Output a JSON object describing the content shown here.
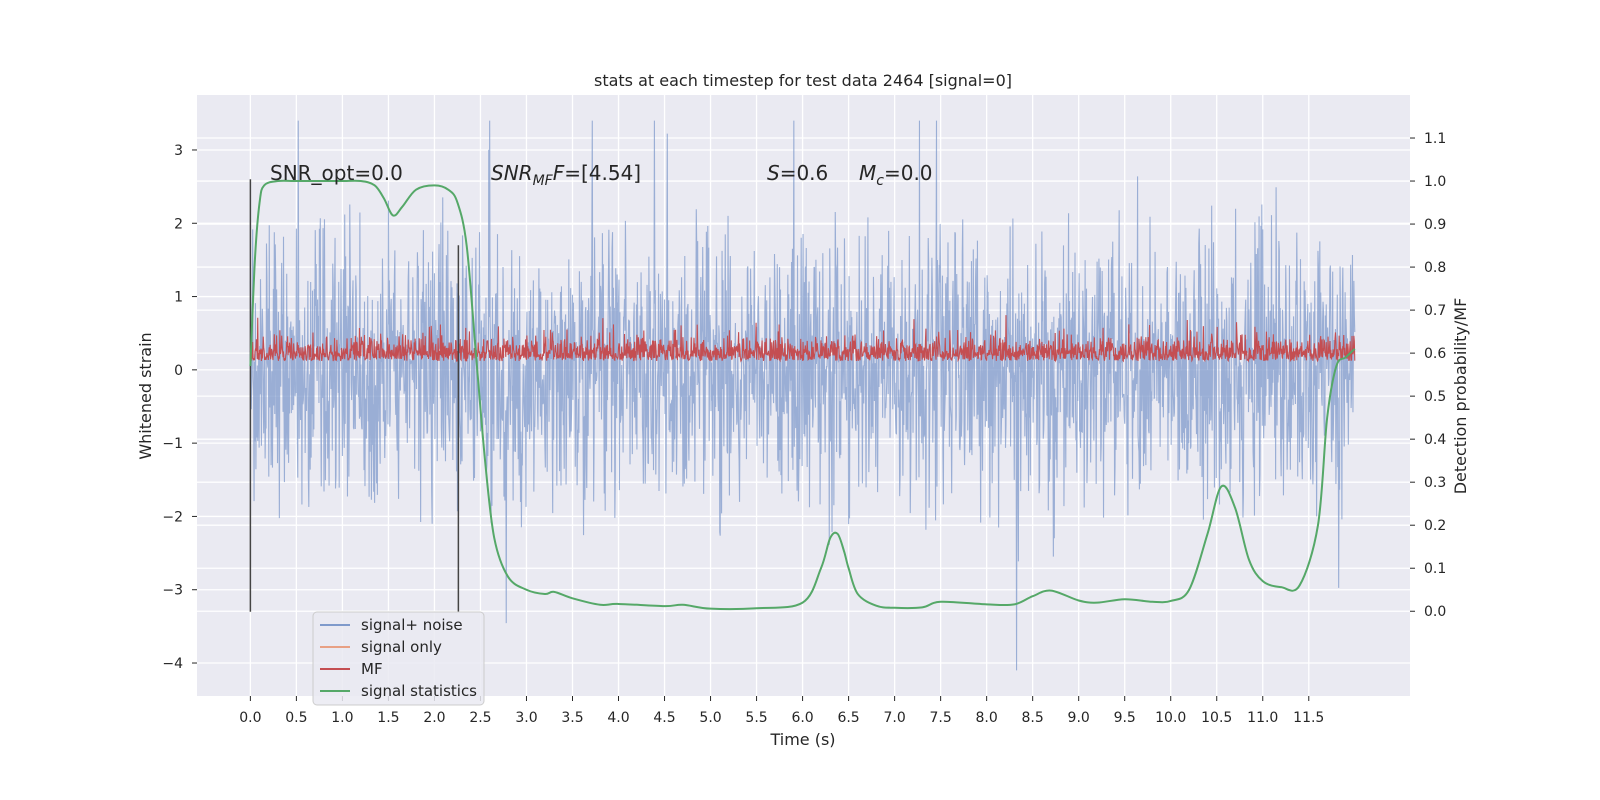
{
  "chart_data": {
    "type": "line",
    "title": "stats at each timestep for test data 2464 [signal=0]",
    "xlabel": "Time (s)",
    "ylabel": "Whitened strain",
    "y2label": "Detection probability/MF",
    "xlim": [
      -0.58,
      12.6
    ],
    "ylim": [
      -4.45,
      3.75
    ],
    "y2lim": [
      -0.197,
      1.2
    ],
    "xticks": [
      "0.0",
      "0.5",
      "1.0",
      "1.5",
      "2.0",
      "2.5",
      "3.0",
      "3.5",
      "4.0",
      "4.5",
      "5.0",
      "5.5",
      "6.0",
      "6.5",
      "7.0",
      "7.5",
      "8.0",
      "8.5",
      "9.0",
      "9.5",
      "10.0",
      "10.5",
      "11.0",
      "11.5"
    ],
    "yticks": [
      3,
      2,
      1,
      0,
      -1,
      -2,
      -3,
      -4
    ],
    "ytick_labels": [
      "3",
      "2",
      "1",
      "0",
      "−1",
      "−2",
      "−3",
      "−4"
    ],
    "y2ticks": [
      "1.1",
      "1.0",
      "0.9",
      "0.8",
      "0.7",
      "0.6",
      "0.5",
      "0.4",
      "0.3",
      "0.2",
      "0.1",
      "0.0"
    ],
    "grid": true,
    "legend_position": "lower-left",
    "annotations": {
      "snr_opt": "SNR_opt=0.0",
      "snr_mf_name": "SNR",
      "snr_mf_sub": "MF",
      "snr_mf_rest": "=[4.54]",
      "s_name": "S",
      "s_rest": "=0.6",
      "mc_name": "M",
      "mc_sub": "c",
      "mc_rest": "=0.0"
    },
    "series": [
      {
        "name": "signal+ noise",
        "color": "#7f9acb",
        "axis": "left",
        "envelope": {
          "t_start": 0.0,
          "t_end": 12.0,
          "typical_abs": 1.5,
          "max": 3.4,
          "min": -4.1
        }
      },
      {
        "name": "signal only",
        "color": "#e8a084",
        "axis": "left",
        "values": []
      },
      {
        "name": "MF",
        "color": "#c44e52",
        "axis": "left",
        "envelope": {
          "t_start": 0.0,
          "t_end": 12.0,
          "baseline": 0.0,
          "typical_max": 0.6,
          "max": 1.0
        }
      },
      {
        "name": "signal statistics",
        "color": "#55a868",
        "axis": "right",
        "x": [
          0.0,
          0.05,
          0.1,
          0.15,
          0.3,
          0.5,
          0.8,
          1.0,
          1.2,
          1.35,
          1.45,
          1.55,
          1.65,
          1.8,
          2.0,
          2.15,
          2.25,
          2.35,
          2.45,
          2.55,
          2.65,
          2.8,
          3.0,
          3.2,
          3.3,
          3.5,
          3.8,
          4.0,
          4.5,
          4.7,
          5.0,
          5.5,
          6.0,
          6.2,
          6.3,
          6.38,
          6.45,
          6.5,
          6.6,
          6.8,
          7.0,
          7.3,
          7.5,
          8.0,
          8.3,
          8.5,
          8.7,
          9.0,
          9.2,
          9.5,
          9.8,
          10.0,
          10.2,
          10.4,
          10.55,
          10.7,
          10.85,
          11.0,
          11.2,
          11.4,
          11.6,
          11.7,
          11.8,
          11.9,
          12.0
        ],
        "y": [
          0.57,
          0.82,
          0.95,
          0.99,
          1.0,
          1.0,
          1.0,
          1.0,
          1.0,
          0.99,
          0.96,
          0.92,
          0.94,
          0.98,
          0.99,
          0.98,
          0.95,
          0.85,
          0.6,
          0.35,
          0.17,
          0.08,
          0.05,
          0.04,
          0.045,
          0.03,
          0.015,
          0.017,
          0.012,
          0.015,
          0.006,
          0.007,
          0.02,
          0.1,
          0.17,
          0.18,
          0.14,
          0.1,
          0.04,
          0.013,
          0.008,
          0.009,
          0.022,
          0.016,
          0.016,
          0.035,
          0.048,
          0.025,
          0.02,
          0.028,
          0.022,
          0.024,
          0.05,
          0.18,
          0.29,
          0.24,
          0.12,
          0.07,
          0.056,
          0.06,
          0.2,
          0.45,
          0.57,
          0.59,
          0.61
        ]
      }
    ],
    "vertical_markers": [
      {
        "x": 0.0,
        "y_from": -3.3,
        "y_to": 2.6
      },
      {
        "x": 2.26,
        "y_from": -3.3,
        "y_to": 1.7
      }
    ]
  }
}
